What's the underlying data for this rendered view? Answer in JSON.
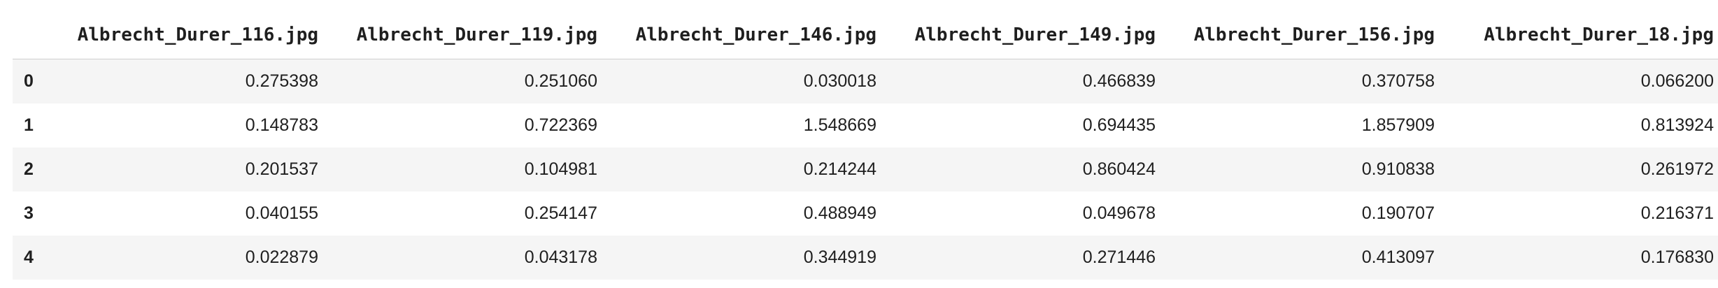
{
  "table": {
    "index_header": "",
    "columns": [
      "Albrecht_Durer_116.jpg",
      "Albrecht_Durer_119.jpg",
      "Albrecht_Durer_146.jpg",
      "Albrecht_Durer_149.jpg",
      "Albrecht_Durer_156.jpg",
      "Albrecht_Durer_18.jpg"
    ],
    "rows": [
      {
        "index": "0",
        "cells": [
          "0.275398",
          "0.251060",
          "0.030018",
          "0.466839",
          "0.370758",
          "0.066200"
        ]
      },
      {
        "index": "1",
        "cells": [
          "0.148783",
          "0.722369",
          "1.548669",
          "0.694435",
          "1.857909",
          "0.813924"
        ]
      },
      {
        "index": "2",
        "cells": [
          "0.201537",
          "0.104981",
          "0.214244",
          "0.860424",
          "0.910838",
          "0.261972"
        ]
      },
      {
        "index": "3",
        "cells": [
          "0.040155",
          "0.254147",
          "0.488949",
          "0.049678",
          "0.190707",
          "0.216371"
        ]
      },
      {
        "index": "4",
        "cells": [
          "0.022879",
          "0.043178",
          "0.344919",
          "0.271446",
          "0.413097",
          "0.176830"
        ]
      }
    ]
  }
}
